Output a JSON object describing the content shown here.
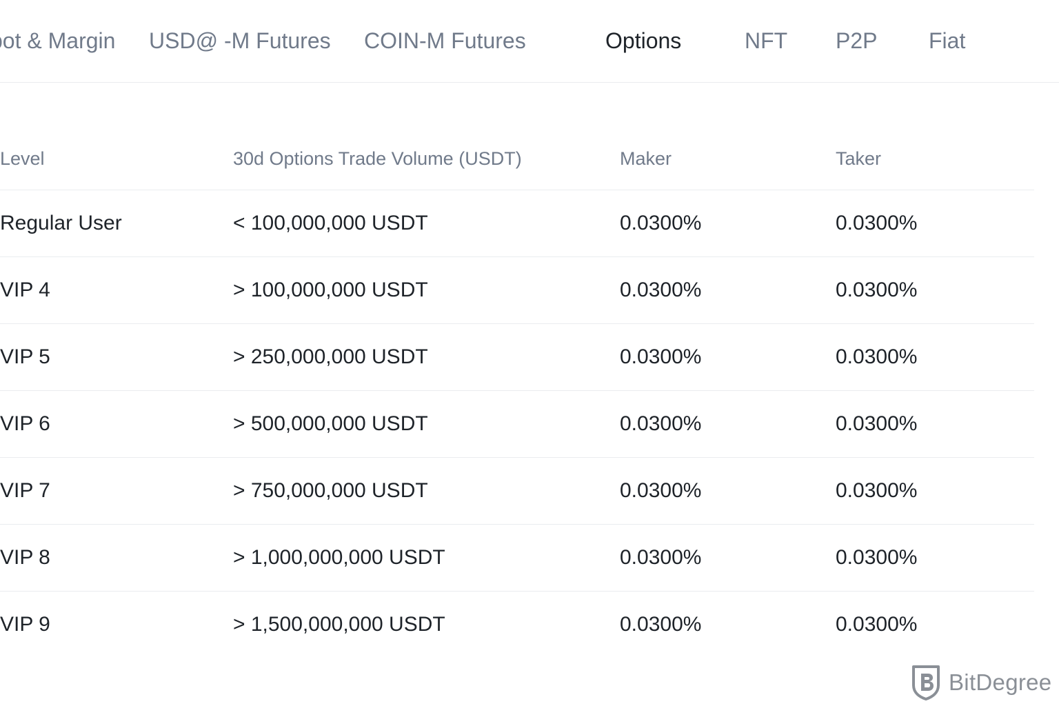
{
  "tabs": [
    {
      "label": "pot & Margin",
      "active": false
    },
    {
      "label": "USD@ -M Futures",
      "active": false
    },
    {
      "label": "COIN-M Futures",
      "active": false
    },
    {
      "label": "Options",
      "active": true
    },
    {
      "label": "NFT",
      "active": false
    },
    {
      "label": "P2P",
      "active": false
    },
    {
      "label": "Fiat",
      "active": false
    }
  ],
  "table": {
    "headers": [
      "Level",
      "30d Options Trade Volume (USDT)",
      "Maker",
      "Taker"
    ],
    "rows": [
      [
        "Regular User",
        "< 100,000,000 USDT",
        "0.0300%",
        "0.0300%"
      ],
      [
        "VIP 4",
        "> 100,000,000 USDT",
        "0.0300%",
        "0.0300%"
      ],
      [
        "VIP 5",
        "> 250,000,000 USDT",
        "0.0300%",
        "0.0300%"
      ],
      [
        "VIP 6",
        "> 500,000,000 USDT",
        "0.0300%",
        "0.0300%"
      ],
      [
        "VIP 7",
        "> 750,000,000 USDT",
        "0.0300%",
        "0.0300%"
      ],
      [
        "VIP 8",
        "> 1,000,000,000 USDT",
        "0.0300%",
        "0.0300%"
      ],
      [
        "VIP 9",
        "> 1,500,000,000 USDT",
        "0.0300%",
        "0.0300%"
      ]
    ]
  },
  "watermark": {
    "text": "BitDegree",
    "icon": "bitdegree-shield-icon"
  },
  "colors": {
    "text_primary": "#1e2329",
    "text_secondary": "#707a8a",
    "divider": "#eaecef",
    "watermark": "#8a8f96"
  }
}
